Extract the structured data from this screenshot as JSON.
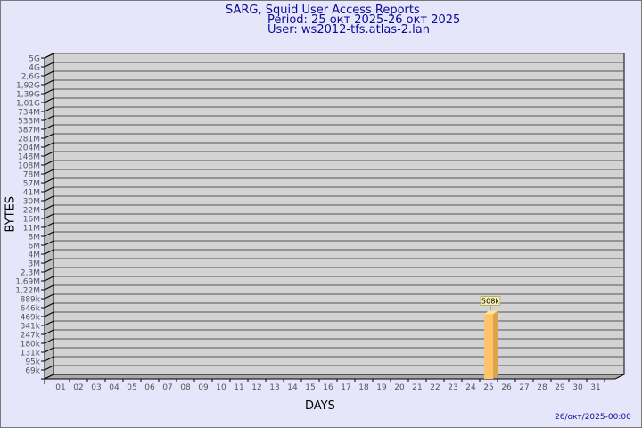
{
  "header": {
    "title": "SARG, Squid User Access Reports",
    "period": "Period: 25 окт 2025-26 окт 2025",
    "user": "User: ws2012-tfs.atlas-2.lan"
  },
  "footer": {
    "generated": "26/окт/2025-00:00"
  },
  "colors": {
    "background": "#e6e6fa",
    "plot": "#d3d3d3",
    "bar": "#fec46b",
    "title": "#0a0a9a"
  },
  "chart_data": {
    "type": "bar",
    "xlabel": "DAYS",
    "ylabel": "BYTES",
    "y_scale": "log",
    "grid": true,
    "yticks": [
      "69k",
      "95k",
      "131k",
      "180k",
      "247k",
      "341k",
      "469k",
      "646k",
      "889k",
      "1,22M",
      "1,69M",
      "2,3M",
      "3M",
      "4M",
      "6M",
      "8M",
      "11M",
      "16M",
      "22M",
      "30M",
      "41M",
      "57M",
      "78M",
      "108M",
      "148M",
      "204M",
      "281M",
      "387M",
      "533M",
      "734M",
      "1,01G",
      "1,39G",
      "1,92G",
      "2,6G",
      "4G",
      "5G"
    ],
    "categories": [
      "01",
      "02",
      "03",
      "04",
      "05",
      "06",
      "07",
      "08",
      "09",
      "10",
      "11",
      "12",
      "13",
      "14",
      "15",
      "16",
      "17",
      "18",
      "19",
      "20",
      "21",
      "22",
      "23",
      "24",
      "25",
      "26",
      "27",
      "28",
      "29",
      "30",
      "31"
    ],
    "bars": [
      {
        "day": "25",
        "value": 508000,
        "label": "508k"
      }
    ]
  }
}
